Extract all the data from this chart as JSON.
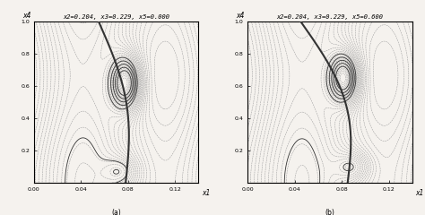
{
  "title_left": "x2=0.204, x3=0.229, x5=0.000",
  "title_right": "x2=0.204, x3=0.229, x5=0.600",
  "xlabel": "x1",
  "ylabel": "x4",
  "label_a": "(a)",
  "label_b": "(b)",
  "background_color": "#f5f2ee",
  "n_contours": 35,
  "contour_color_dot": "#999999",
  "contour_color_solid": "#333333"
}
